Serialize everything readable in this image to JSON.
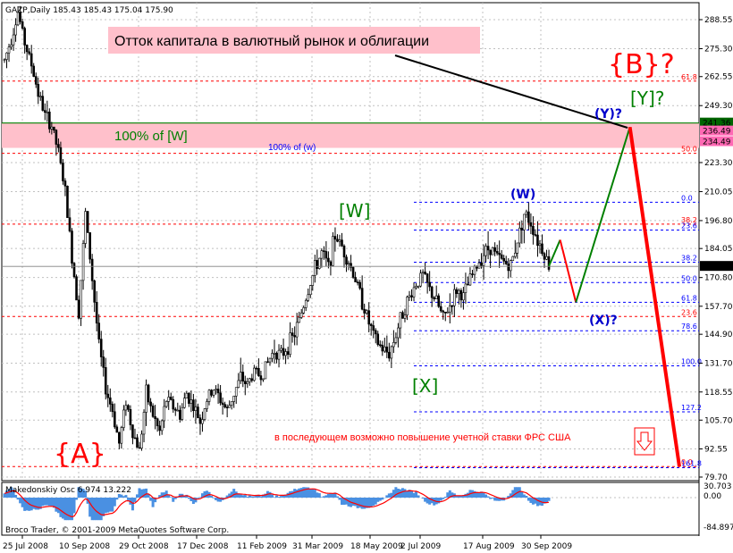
{
  "window": {
    "symbol_header": "GAZP,Daily  185.43 185.43 175.04 175.90",
    "indicator_header": "Makedonskiy Osc 6.974 13.222",
    "copyright": "Broco Trader, © 2001-2009 MetaQuotes Software Corp."
  },
  "annotations": {
    "title_box": "Отток капитала в валютный рынок и облигации",
    "note": "в последующем возможно повышение учетной ставки ФРС США",
    "level_100_w_big": "100% of [W]",
    "level_100_w_small": "100% of (w)",
    "wave_A": "{A}",
    "wave_B": "{B}?",
    "wave_W": "[W]",
    "wave_X": "[X]",
    "wave_Y": "[Y]?",
    "wave_w": "(W)",
    "wave_x": "(X)?",
    "wave_y": "(Y)?"
  },
  "colors": {
    "candle": "#000000",
    "red_level": "#ff0000",
    "blue_level": "#0000ff",
    "green_level": "#008000",
    "pink_band": "#ffc0cb",
    "forecast_green": "#008000",
    "forecast_red": "#ff0000",
    "osc_fill": "#4a90e2",
    "osc_line": "#ff0000",
    "gray_grid": "#c0c0c0"
  },
  "chart_data": [
    {
      "type": "candlestick",
      "symbol": "GAZP",
      "timeframe": "Daily",
      "last_bar": {
        "open": 185.43,
        "high": 185.43,
        "low": 175.04,
        "close": 175.9
      },
      "price_ticks": [
        "288.55",
        "275.30",
        "262.55",
        "249.30",
        "223.30",
        "210.05",
        "196.80",
        "184.05",
        "170.80",
        "157.70",
        "144.90",
        "131.70",
        "118.55",
        "105.70",
        "92.55",
        "79.70"
      ],
      "marked_prices": [
        "241.36",
        "236.49",
        "234.49",
        "175.90"
      ],
      "date_ticks": [
        "25 Jul 2008",
        "10 Sep 2008",
        "29 Oct 2008",
        "17 Dec 2008",
        "11 Feb 2009",
        "31 Mar 2009",
        "18 May 2009",
        "2 Jul 2009",
        "17 Aug 2009",
        "30 Sep 2009"
      ],
      "y_range": [
        79.7,
        295
      ],
      "grid": true,
      "price_path": [
        [
          0,
          270
        ],
        [
          3,
          280
        ],
        [
          6,
          292
        ],
        [
          9,
          278
        ],
        [
          12,
          268
        ],
        [
          15,
          255
        ],
        [
          18,
          245
        ],
        [
          21,
          240
        ],
        [
          24,
          228
        ],
        [
          27,
          210
        ],
        [
          30,
          180
        ],
        [
          33,
          155
        ],
        [
          36,
          200
        ],
        [
          39,
          170
        ],
        [
          42,
          140
        ],
        [
          45,
          120
        ],
        [
          48,
          110
        ],
        [
          51,
          95
        ],
        [
          54,
          115
        ],
        [
          57,
          100
        ],
        [
          60,
          92
        ],
        [
          63,
          118
        ],
        [
          66,
          108
        ],
        [
          69,
          100
        ],
        [
          72,
          115
        ],
        [
          75,
          112
        ],
        [
          78,
          108
        ],
        [
          81,
          118
        ],
        [
          84,
          112
        ],
        [
          87,
          105
        ],
        [
          90,
          115
        ],
        [
          93,
          120
        ],
        [
          96,
          115
        ],
        [
          99,
          110
        ],
        [
          102,
          118
        ],
        [
          105,
          125
        ],
        [
          108,
          122
        ],
        [
          111,
          128
        ],
        [
          114,
          126
        ],
        [
          117,
          132
        ],
        [
          120,
          138
        ],
        [
          123,
          135
        ],
        [
          126,
          140
        ],
        [
          129,
          145
        ],
        [
          132,
          155
        ],
        [
          135,
          165
        ],
        [
          138,
          175
        ],
        [
          141,
          182
        ],
        [
          144,
          176
        ],
        [
          147,
          190
        ],
        [
          150,
          185
        ],
        [
          153,
          178
        ],
        [
          156,
          170
        ],
        [
          159,
          160
        ],
        [
          162,
          150
        ],
        [
          165,
          142
        ],
        [
          168,
          138
        ],
        [
          171,
          136
        ],
        [
          174,
          145
        ],
        [
          177,
          155
        ],
        [
          180,
          162
        ],
        [
          183,
          168
        ],
        [
          186,
          172
        ],
        [
          189,
          165
        ],
        [
          192,
          160
        ],
        [
          195,
          152
        ],
        [
          198,
          158
        ],
        [
          201,
          165
        ],
        [
          204,
          162
        ],
        [
          207,
          170
        ],
        [
          210,
          176
        ],
        [
          213,
          182
        ],
        [
          216,
          185
        ],
        [
          219,
          180
        ],
        [
          222,
          178
        ],
        [
          225,
          176
        ],
        [
          228,
          188
        ],
        [
          231,
          200
        ],
        [
          234,
          196
        ],
        [
          237,
          188
        ],
        [
          240,
          182
        ],
        [
          242,
          176
        ]
      ]
    },
    {
      "type": "line",
      "title": "Makedonskiy Osc 6.974 13.222",
      "y_ticks": [
        "30.703",
        "0.00",
        "-84.897"
      ],
      "y_range": [
        -84.897,
        30.703
      ]
    }
  ],
  "fib_levels": {
    "red": [
      {
        "label": "61.8",
        "price": 260.5
      },
      {
        "label": "50.0",
        "price": 227.5
      },
      {
        "label": "38.2",
        "price": 195.2
      },
      {
        "label": "23.6",
        "price": 153.0
      },
      {
        "label": "0.0",
        "price": 84.5
      }
    ],
    "blue": [
      {
        "label": "0.0",
        "price": 205.2
      },
      {
        "label": "23.6",
        "price": 192.5
      },
      {
        "label": "38.2",
        "price": 177.8
      },
      {
        "label": "50.0",
        "price": 168.5
      },
      {
        "label": "61.8",
        "price": 159.5
      },
      {
        "label": "78.6",
        "price": 146.5
      },
      {
        "label": "100.0",
        "price": 130.5
      },
      {
        "label": "127.2",
        "price": 109.5
      },
      {
        "label": "161.8",
        "price": 84.0
      }
    ]
  },
  "highlight_prices": {
    "green_line_1": 241.36,
    "green_line_2": 241.0,
    "pink_top": 241.36,
    "pink_bottom": 230.0
  },
  "forecast_path": [
    {
      "t": 242,
      "p": 176.0
    },
    {
      "t": 247,
      "p": 188.0
    },
    {
      "t": 254,
      "p": 159.5
    },
    {
      "t": 278,
      "p": 239.5
    },
    {
      "t": 300,
      "p": 84.5
    }
  ]
}
